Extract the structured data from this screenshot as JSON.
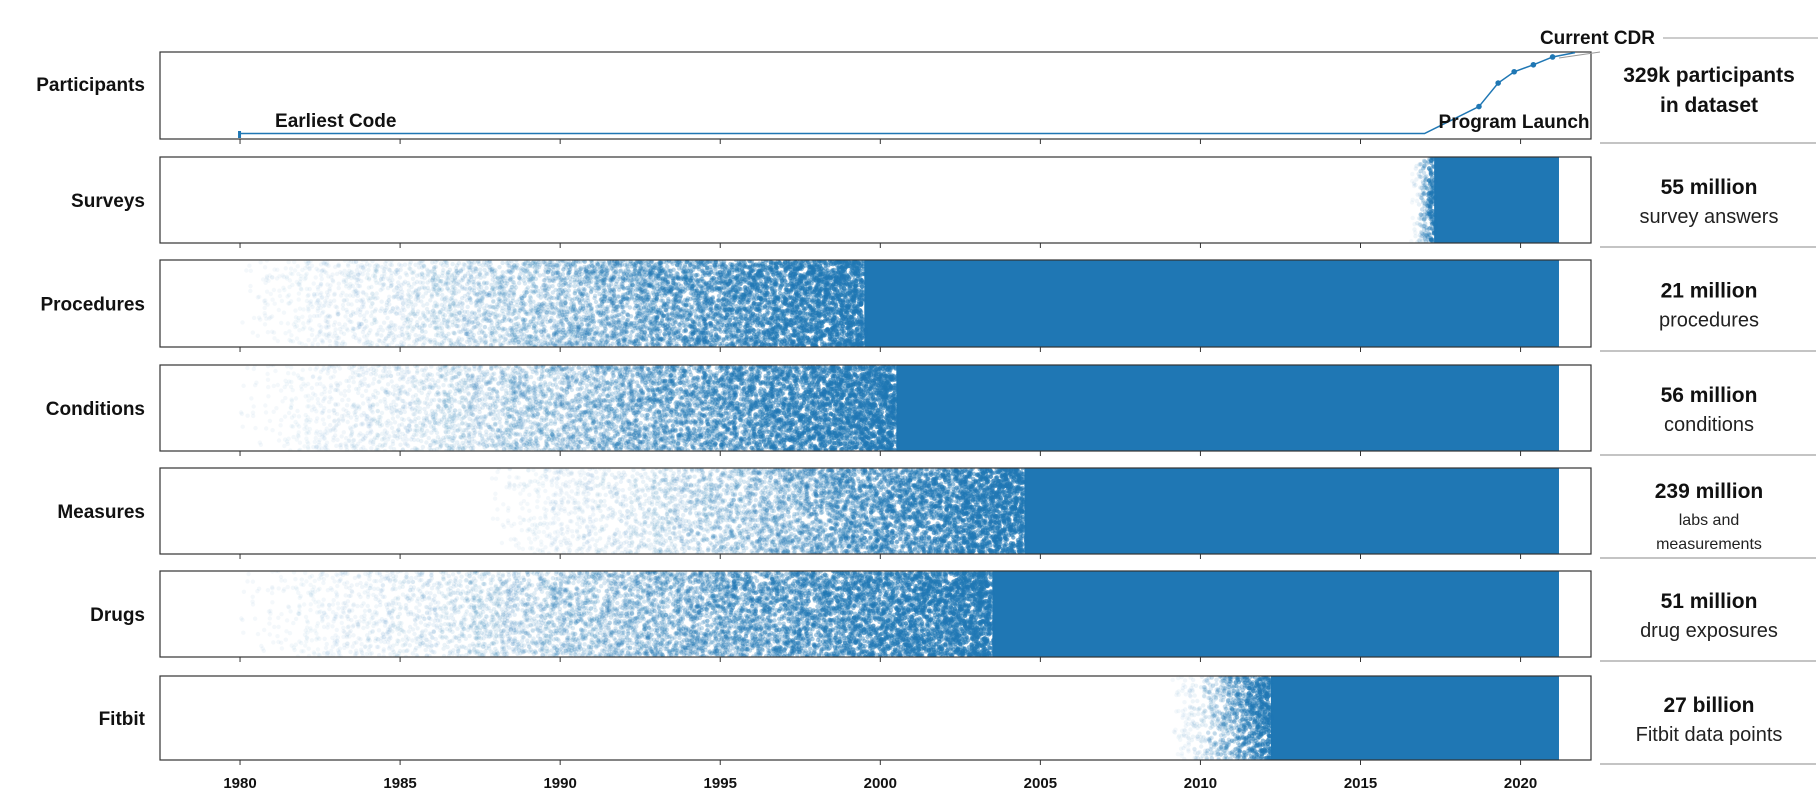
{
  "chart_data": {
    "type": "scatter",
    "title": "",
    "xlabel": "",
    "ylabel": "",
    "xlim": [
      1977.5,
      2022.2
    ],
    "x_ticks": [
      "1980",
      "1985",
      "1990",
      "1995",
      "2000",
      "2005",
      "2010",
      "2015",
      "2020"
    ],
    "point_color": "#1f77b4",
    "annotations": {
      "earliest_code": "Earliest Code",
      "program_launch": "Program Launch",
      "current_cdr": "Current CDR"
    },
    "participants": {
      "label": "Participants",
      "earliest_code_year": 1980,
      "program_launch_year": 2017,
      "current_cdr_year": 2021.2,
      "curve": [
        {
          "year": 1980.0,
          "level": 0.04
        },
        {
          "year": 2017.0,
          "level": 0.04
        },
        {
          "year": 2018.7,
          "level": 0.35
        },
        {
          "year": 2019.3,
          "level": 0.62
        },
        {
          "year": 2019.8,
          "level": 0.75
        },
        {
          "year": 2020.4,
          "level": 0.83
        },
        {
          "year": 2021.0,
          "level": 0.92
        },
        {
          "year": 2021.7,
          "level": 0.97
        }
      ]
    },
    "series": [
      {
        "name": "Surveys",
        "start_year": 2016.6,
        "solid_from": 2017.3,
        "end_year": 2021.2,
        "summary_big": "55 million",
        "summary_lines": [
          "survey answers"
        ]
      },
      {
        "name": "Procedures",
        "start_year": 1980,
        "solid_from": 1999.5,
        "end_year": 2021.2,
        "summary_big": "21 million",
        "summary_lines": [
          "procedures"
        ]
      },
      {
        "name": "Conditions",
        "start_year": 1980,
        "solid_from": 2000.5,
        "end_year": 2021.2,
        "summary_big": "56 million",
        "summary_lines": [
          "conditions"
        ]
      },
      {
        "name": "Measures",
        "start_year": 1987.7,
        "solid_from": 2004.5,
        "end_year": 2021.2,
        "summary_big": "239 million",
        "summary_lines": [
          "labs and",
          "measurements"
        ]
      },
      {
        "name": "Drugs",
        "start_year": 1980,
        "solid_from": 2003.5,
        "end_year": 2021.2,
        "summary_big": "51 million",
        "summary_lines": [
          "drug exposures"
        ]
      },
      {
        "name": "Fitbit",
        "start_year": 2009.1,
        "solid_from": 2012.2,
        "end_year": 2021.2,
        "summary_big": "27 billion",
        "summary_lines": [
          "Fitbit data points"
        ]
      }
    ],
    "participants_summary": {
      "big": "329k participants",
      "line": "in dataset"
    },
    "grid": false,
    "legend": "none"
  }
}
